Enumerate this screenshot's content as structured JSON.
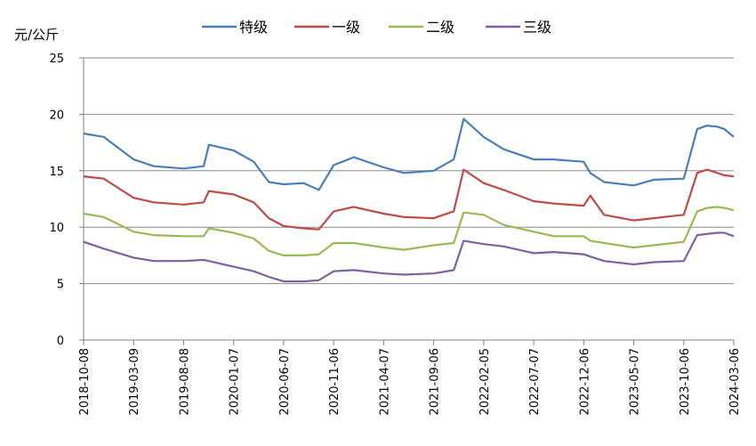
{
  "chart_data": {
    "type": "line",
    "ylabel": "元/公斤",
    "ylim": [
      0,
      25
    ],
    "yticks": [
      0,
      5,
      10,
      15,
      20,
      25
    ],
    "grid": true,
    "legend_position": "top",
    "x_tick_labels": [
      "2018-10-08",
      "2019-03-09",
      "2019-08-08",
      "2020-01-07",
      "2020-06-07",
      "2020-11-06",
      "2021-04-07",
      "2021-09-06",
      "2022-02-05",
      "2022-07-07",
      "2022-12-06",
      "2023-05-07",
      "2023-10-06",
      "2024-03-06"
    ],
    "x": [
      "2018-10-08",
      "2018-12-08",
      "2019-03-09",
      "2019-05-09",
      "2019-08-08",
      "2019-10-08",
      "2019-10-24",
      "2020-01-07",
      "2020-03-08",
      "2020-04-23",
      "2020-06-07",
      "2020-08-07",
      "2020-09-22",
      "2020-11-06",
      "2021-01-06",
      "2021-04-07",
      "2021-06-07",
      "2021-09-06",
      "2021-11-06",
      "2021-12-06",
      "2022-02-05",
      "2022-04-07",
      "2022-07-07",
      "2022-09-06",
      "2022-12-06",
      "2022-12-26",
      "2023-02-06",
      "2023-05-07",
      "2023-07-07",
      "2023-10-06",
      "2023-11-16",
      "2023-12-16",
      "2024-01-16",
      "2024-02-06",
      "2024-03-06"
    ],
    "series": [
      {
        "name": "特级",
        "color": "#4a7ebb",
        "values": [
          18.3,
          18.0,
          16.0,
          15.4,
          15.2,
          15.4,
          17.3,
          16.8,
          15.8,
          14.0,
          13.8,
          13.9,
          13.3,
          15.5,
          16.2,
          15.3,
          14.8,
          15.0,
          16.0,
          19.6,
          18.0,
          16.9,
          16.0,
          16.0,
          15.8,
          14.8,
          14.0,
          13.7,
          14.2,
          14.3,
          18.7,
          19.0,
          18.9,
          18.7,
          18.0
        ]
      },
      {
        "name": "一级",
        "color": "#be4b48",
        "values": [
          14.5,
          14.3,
          12.6,
          12.2,
          12.0,
          12.2,
          13.2,
          12.9,
          12.2,
          10.8,
          10.1,
          9.9,
          9.8,
          11.4,
          11.8,
          11.2,
          10.9,
          10.8,
          11.4,
          15.1,
          13.9,
          13.3,
          12.3,
          12.1,
          11.9,
          12.8,
          11.1,
          10.6,
          10.8,
          11.1,
          14.8,
          15.1,
          14.8,
          14.6,
          14.5
        ]
      },
      {
        "name": "二级",
        "color": "#98b954",
        "values": [
          11.2,
          10.9,
          9.6,
          9.3,
          9.2,
          9.2,
          9.9,
          9.5,
          9.0,
          7.9,
          7.5,
          7.5,
          7.6,
          8.6,
          8.6,
          8.2,
          8.0,
          8.4,
          8.6,
          11.3,
          11.1,
          10.2,
          9.6,
          9.2,
          9.2,
          8.8,
          8.6,
          8.2,
          8.4,
          8.7,
          11.4,
          11.7,
          11.8,
          11.7,
          11.5
        ]
      },
      {
        "name": "三级",
        "color": "#7d60a0",
        "values": [
          8.7,
          8.1,
          7.3,
          7.0,
          7.0,
          7.1,
          7.0,
          6.5,
          6.1,
          5.6,
          5.2,
          5.2,
          5.3,
          6.1,
          6.2,
          5.9,
          5.8,
          5.9,
          6.2,
          8.8,
          8.5,
          8.3,
          7.7,
          7.8,
          7.6,
          7.4,
          7.0,
          6.7,
          6.9,
          7.0,
          9.3,
          9.4,
          9.5,
          9.5,
          9.2
        ]
      }
    ]
  }
}
